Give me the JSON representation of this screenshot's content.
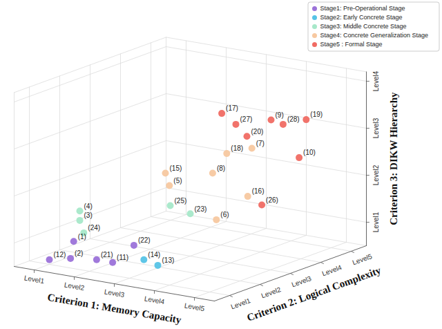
{
  "chart_data": {
    "type": "scatter",
    "x_label": "Criterion 1: Memory Capacity",
    "y_label": "Criterion 2: Logical Complexity",
    "z_label": "Criterion 3: DIKW Hierarchy",
    "xlim": [
      0.5,
      5.5
    ],
    "ylim": [
      0.5,
      5.5
    ],
    "zlim": [
      0.5,
      4.2
    ],
    "xticks": [
      {
        "value": 1,
        "label": "Level1"
      },
      {
        "value": 2,
        "label": "Level2"
      },
      {
        "value": 3,
        "label": "Level3"
      },
      {
        "value": 4,
        "label": "Level4"
      },
      {
        "value": 5,
        "label": "Level5"
      }
    ],
    "yticks": [
      {
        "value": 1,
        "label": "Level1"
      },
      {
        "value": 2,
        "label": "Level2"
      },
      {
        "value": 3,
        "label": "Level3"
      },
      {
        "value": 4,
        "label": "Level4"
      },
      {
        "value": 5,
        "label": "Level5"
      }
    ],
    "zticks": [
      {
        "value": 1,
        "label": "Level1"
      },
      {
        "value": 2,
        "label": "Level2"
      },
      {
        "value": 3,
        "label": "Level3"
      },
      {
        "value": 4,
        "label": "Level4"
      }
    ],
    "grid": true,
    "legend": "top-right",
    "series": [
      {
        "name": "Stage1: Pre-Operational Stage",
        "color": "#9b72d9",
        "labels": [
          "(1)",
          "(2)",
          "(12)",
          "(21)",
          "(11)",
          "(22)"
        ],
        "x": [
          1,
          1.3,
          1,
          1.8,
          2.2,
          2.2
        ],
        "y": [
          1.8,
          1.3,
          1,
          1.5,
          1.5,
          2.2
        ],
        "z": [
          0.8,
          0.6,
          0.6,
          0.6,
          0.6,
          0.8
        ]
      },
      {
        "name": "Stage2: Early Concrete Stage",
        "color": "#56c3e6",
        "labels": [
          "(14)",
          "(13)"
        ],
        "x": [
          2.6,
          3.1
        ],
        "y": [
          2,
          1.8
        ],
        "z": [
          0.6,
          0.6
        ]
      },
      {
        "name": "Stage3: Middle Concrete Stage",
        "color": "#a7e8c9",
        "labels": [
          "(4)",
          "(3)",
          "(24)",
          "(25)",
          "(23)"
        ],
        "x": [
          1,
          1,
          1.1,
          2.5,
          3
        ],
        "y": [
          2,
          2,
          2,
          3,
          3
        ],
        "z": [
          1.4,
          1.2,
          0.95,
          1.5,
          1.4
        ]
      },
      {
        "name": "Stage4: Concrete Generalization Stage",
        "color": "#f7c8a0",
        "labels": [
          "(15)",
          "(5)",
          "(8)",
          "(6)",
          "(16)",
          "(18)",
          "(7)"
        ],
        "x": [
          2,
          2.1,
          2.8,
          3.5,
          3.6,
          3,
          3.4
        ],
        "y": [
          3.5,
          3.5,
          4,
          3.2,
          4.1,
          4.2,
          4.5
        ],
        "z": [
          2,
          1.75,
          2,
          1.3,
          1.6,
          2.4,
          2.5
        ]
      },
      {
        "name": "Stage5 : Formal Stage",
        "color": "#f06b63",
        "labels": [
          "(17)",
          "(27)",
          "(9)",
          "(19)",
          "(28)",
          "(20)",
          "(10)",
          "(26)"
        ],
        "x": [
          2.8,
          3,
          3.5,
          4.3,
          3.8,
          3.2,
          4.2,
          3.8
        ],
        "y": [
          4.3,
          4.5,
          5,
          5.1,
          5,
          4.6,
          5,
          4.3
        ],
        "z": [
          3.2,
          2.95,
          3,
          3.1,
          2.95,
          2.7,
          2.3,
          1.4
        ]
      }
    ]
  }
}
